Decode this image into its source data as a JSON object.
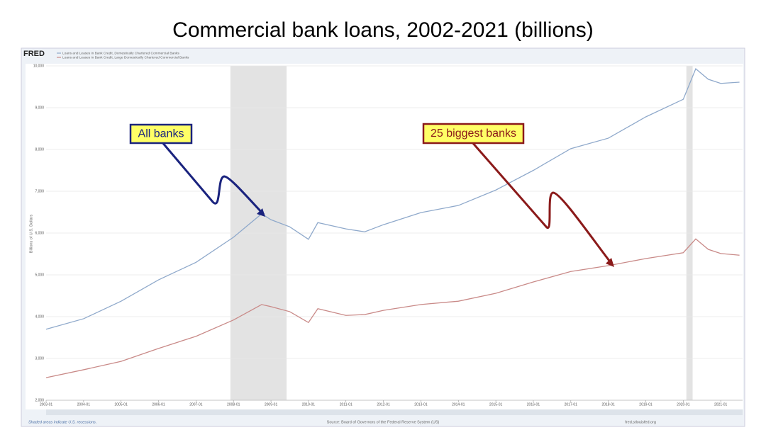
{
  "chart_data": {
    "type": "line",
    "title": "Commercial bank loans, 2002-2021 (billions)",
    "logo": "FRED",
    "y_label": "Billions of U.S. Dollars",
    "recession_note": "Shaded areas indicate U.S. recessions.",
    "source": "Source: Board of Governors of the Federal Reserve System (US)",
    "site": "fred.stlouisfed.org",
    "annotations": [
      "All banks",
      "25 biggest banks"
    ],
    "recessions": [
      [
        "2007-12",
        "2009-06"
      ],
      [
        "2020-02",
        "2020-04"
      ]
    ],
    "xlim": [
      "2003-01",
      "2021-08"
    ],
    "xticks": [
      "2003-01",
      "2004-01",
      "2005-01",
      "2006-01",
      "2007-01",
      "2008-01",
      "2009-01",
      "2010-01",
      "2011-01",
      "2012-01",
      "2013-01",
      "2014-01",
      "2015-01",
      "2016-01",
      "2017-01",
      "2018-01",
      "2019-01",
      "2020-01",
      "2021-01"
    ],
    "ylim": [
      2000,
      10000
    ],
    "yticks": [
      {
        "value": 2000,
        "label": "2,000"
      },
      {
        "value": 3000,
        "label": "3,000"
      },
      {
        "value": 4000,
        "label": "4,000"
      },
      {
        "value": 5000,
        "label": "5,000"
      },
      {
        "value": 6000,
        "label": "6,000"
      },
      {
        "value": 7000,
        "label": "7,000"
      },
      {
        "value": 8000,
        "label": "8,000"
      },
      {
        "value": 9000,
        "label": "9,000"
      },
      {
        "value": 10000,
        "label": "10,000"
      }
    ],
    "grid": true,
    "x": [
      "2003-01",
      "2004-01",
      "2005-01",
      "2006-01",
      "2007-01",
      "2008-01",
      "2008-10",
      "2009-01",
      "2009-07",
      "2010-01",
      "2010-04",
      "2011-01",
      "2011-07",
      "2012-01",
      "2013-01",
      "2014-01",
      "2015-01",
      "2016-01",
      "2017-01",
      "2018-01",
      "2019-01",
      "2020-01",
      "2020-05",
      "2020-09",
      "2021-01",
      "2021-07"
    ],
    "series": [
      {
        "name": "Loans and Leases in Bank Credit, Domestically Chartered Commercial Banks",
        "color": "#8fa9cb",
        "values": [
          3700,
          3950,
          4370,
          4880,
          5300,
          5900,
          6460,
          6320,
          6150,
          5850,
          6250,
          6100,
          6030,
          6200,
          6490,
          6660,
          7030,
          7500,
          8020,
          8270,
          8780,
          9200,
          9930,
          9680,
          9580,
          9610
        ]
      },
      {
        "name": "Loans and Leases in Bank Credit, Large Domestically Chartered Commercial Banks",
        "color": "#c98a88",
        "values": [
          2540,
          2730,
          2930,
          3240,
          3530,
          3920,
          4290,
          4240,
          4120,
          3860,
          4190,
          4030,
          4050,
          4150,
          4290,
          4370,
          4560,
          4830,
          5080,
          5220,
          5390,
          5530,
          5860,
          5610,
          5510,
          5470
        ]
      }
    ]
  }
}
